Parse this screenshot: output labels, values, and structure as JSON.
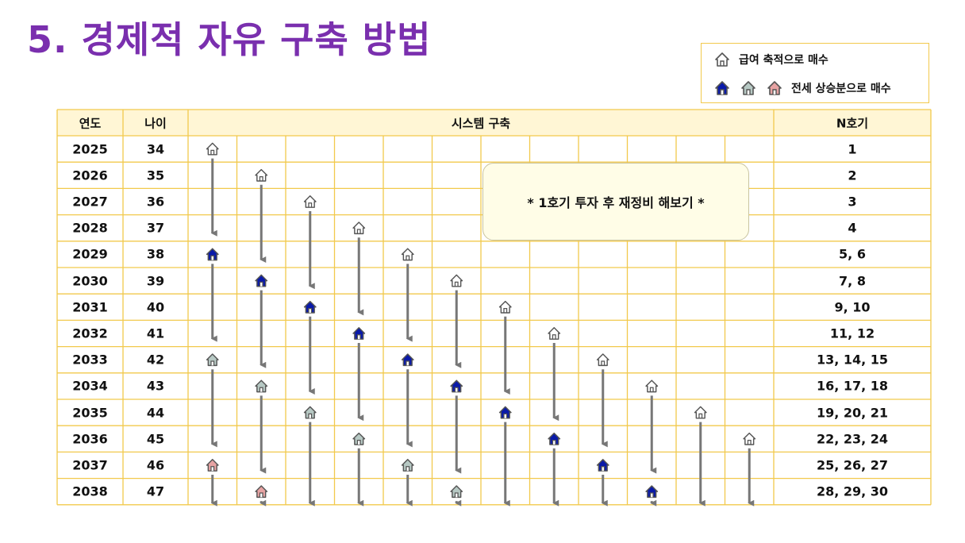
{
  "title": "5. 경제적 자유 구축 방법",
  "legend": {
    "salary_label": "급여 축적으로 매수",
    "jeonse_label": "전세 상승분으로 매수"
  },
  "table": {
    "headers": {
      "year": "연도",
      "age": "나이",
      "system": "시스템 구축",
      "n": "N호기"
    },
    "rows": [
      {
        "year": "2025",
        "age": "34",
        "n": "1"
      },
      {
        "year": "2026",
        "age": "35",
        "n": "2"
      },
      {
        "year": "2027",
        "age": "36",
        "n": "3"
      },
      {
        "year": "2028",
        "age": "37",
        "n": "4"
      },
      {
        "year": "2029",
        "age": "38",
        "n": "5, 6"
      },
      {
        "year": "2030",
        "age": "39",
        "n": "7, 8"
      },
      {
        "year": "2031",
        "age": "40",
        "n": "9, 10"
      },
      {
        "year": "2032",
        "age": "41",
        "n": "11, 12"
      },
      {
        "year": "2033",
        "age": "42",
        "n": "13, 14, 15"
      },
      {
        "year": "2034",
        "age": "43",
        "n": "16, 17, 18"
      },
      {
        "year": "2035",
        "age": "44",
        "n": "19, 20, 21"
      },
      {
        "year": "2036",
        "age": "45",
        "n": "22, 23, 24"
      },
      {
        "year": "2037",
        "age": "46",
        "n": "25, 26, 27"
      },
      {
        "year": "2038",
        "age": "47",
        "n": "28, 29, 30"
      }
    ]
  },
  "callout": "* 1호기 투자 후 재정비 해보기 *",
  "house_colors": {
    "salary": "#ffffff",
    "jeonse_1": "#0a1aa8",
    "jeonse_2": "#b7c9c4",
    "jeonse_3": "#e7a3a3",
    "outline": "#555555",
    "arrow": "#777777",
    "grid": "#f2c94c",
    "header_bg": "#fff6d5"
  },
  "house_kinds": [
    "salary",
    "jeonse_1",
    "jeonse_2",
    "jeonse_3"
  ]
}
